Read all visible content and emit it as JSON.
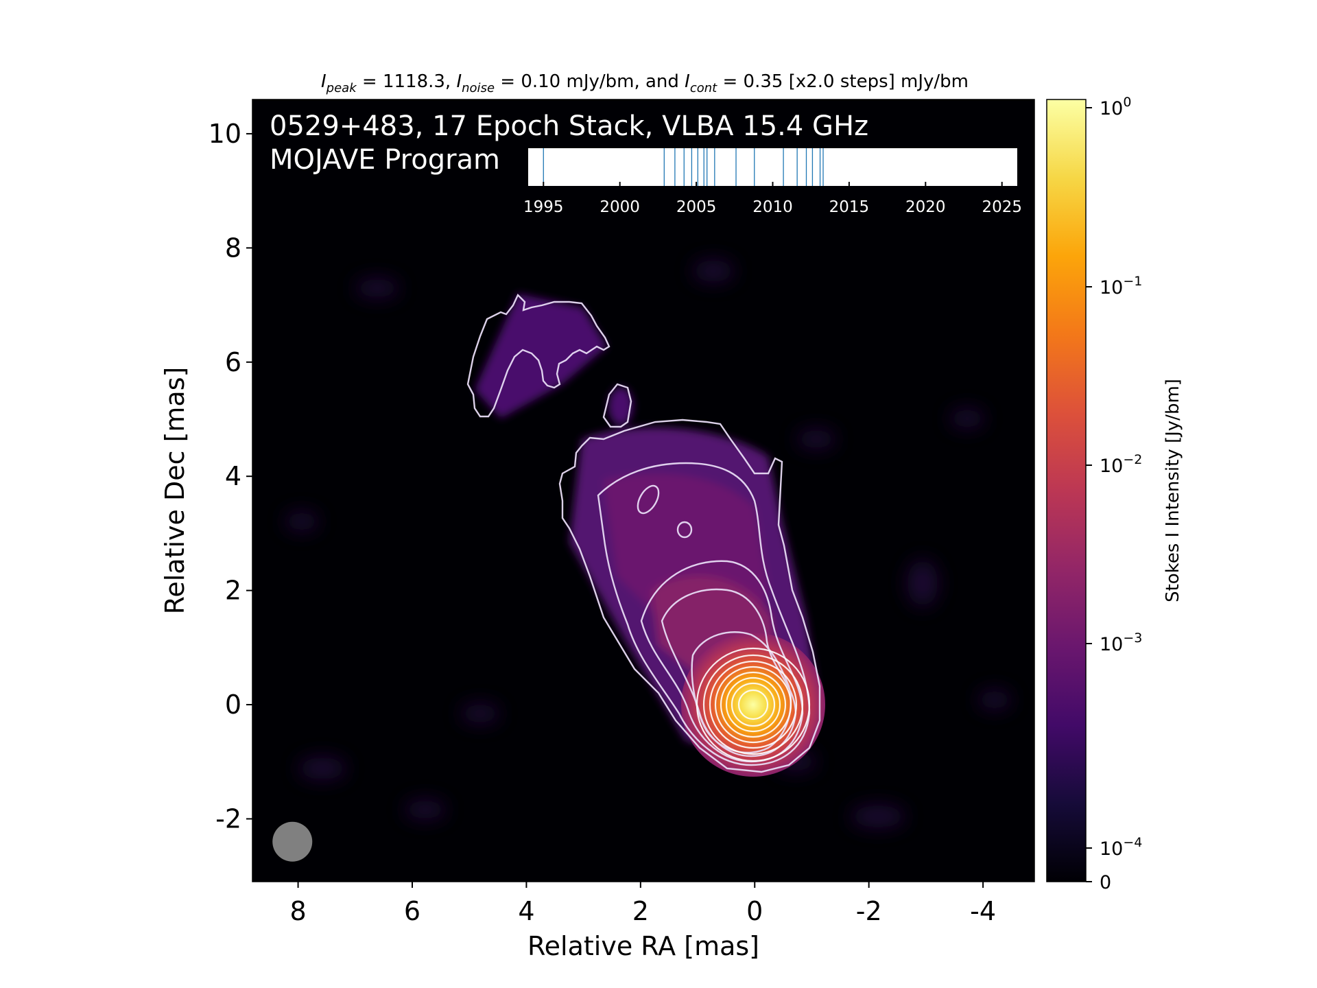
{
  "chart_data": {
    "type": "heatmap",
    "title": {
      "i_peak_label": "I",
      "i_peak_sub": "peak",
      "i_peak_value": " = 1118.3, ",
      "i_noise_label": "I",
      "i_noise_sub": "noise",
      "i_noise_value": " = 0.10 mJy/bm, and ",
      "i_cont_label": "I",
      "i_cont_sub": "cont",
      "i_cont_value": " = 0.35 [x2.0 steps] mJy/bm"
    },
    "annotation_line1": "0529+483, 17 Epoch Stack, VLBA 15.4 GHz",
    "annotation_line2": "MOJAVE Program",
    "xlabel": "Relative RA [mas]",
    "ylabel": "Relative Dec [mas]",
    "xlim": [
      8.8,
      -4.9
    ],
    "ylim": [
      -3.1,
      10.6
    ],
    "xticks": [
      8,
      6,
      4,
      2,
      0,
      -2,
      -4
    ],
    "xtick_labels": [
      "8",
      "6",
      "4",
      "2",
      "0",
      "-2",
      "-4"
    ],
    "yticks": [
      -2,
      0,
      2,
      4,
      6,
      8,
      10
    ],
    "ytick_labels": [
      "-2",
      "0",
      "2",
      "4",
      "6",
      "8",
      "10"
    ],
    "colorbar": {
      "label": "Stokes I Intensity [Jy/bm]",
      "scale": "log",
      "ticks": [
        {
          "base": "10",
          "exp": "0"
        },
        {
          "base": "10",
          "exp": "−1"
        },
        {
          "base": "10",
          "exp": "−2"
        },
        {
          "base": "10",
          "exp": "−3"
        },
        {
          "base": "10",
          "exp": "−4"
        },
        {
          "base": "0",
          "exp": ""
        }
      ],
      "colormap": "inferno"
    },
    "epoch_timeline": {
      "xlim": [
        1994,
        2026
      ],
      "ticks": [
        1995,
        2000,
        2005,
        2010,
        2015,
        2020,
        2025
      ],
      "tick_labels": [
        "1995",
        "2000",
        "2005",
        "2010",
        "2015",
        "2020",
        "2025"
      ],
      "epochs": [
        1995.0,
        2002.9,
        2003.6,
        2004.2,
        2004.7,
        2005.1,
        2005.5,
        2005.7,
        2006.2,
        2007.6,
        2008.8,
        2010.7,
        2011.6,
        2012.2,
        2012.6,
        2013.1,
        2013.3
      ]
    },
    "beam": {
      "x": 8.1,
      "y": -2.4,
      "diameter_mas": 0.7
    },
    "peak": {
      "x": 0,
      "y": 0
    },
    "contour_colors": {
      "outer": "#e8dcf5",
      "inner": "#ffffff"
    }
  }
}
